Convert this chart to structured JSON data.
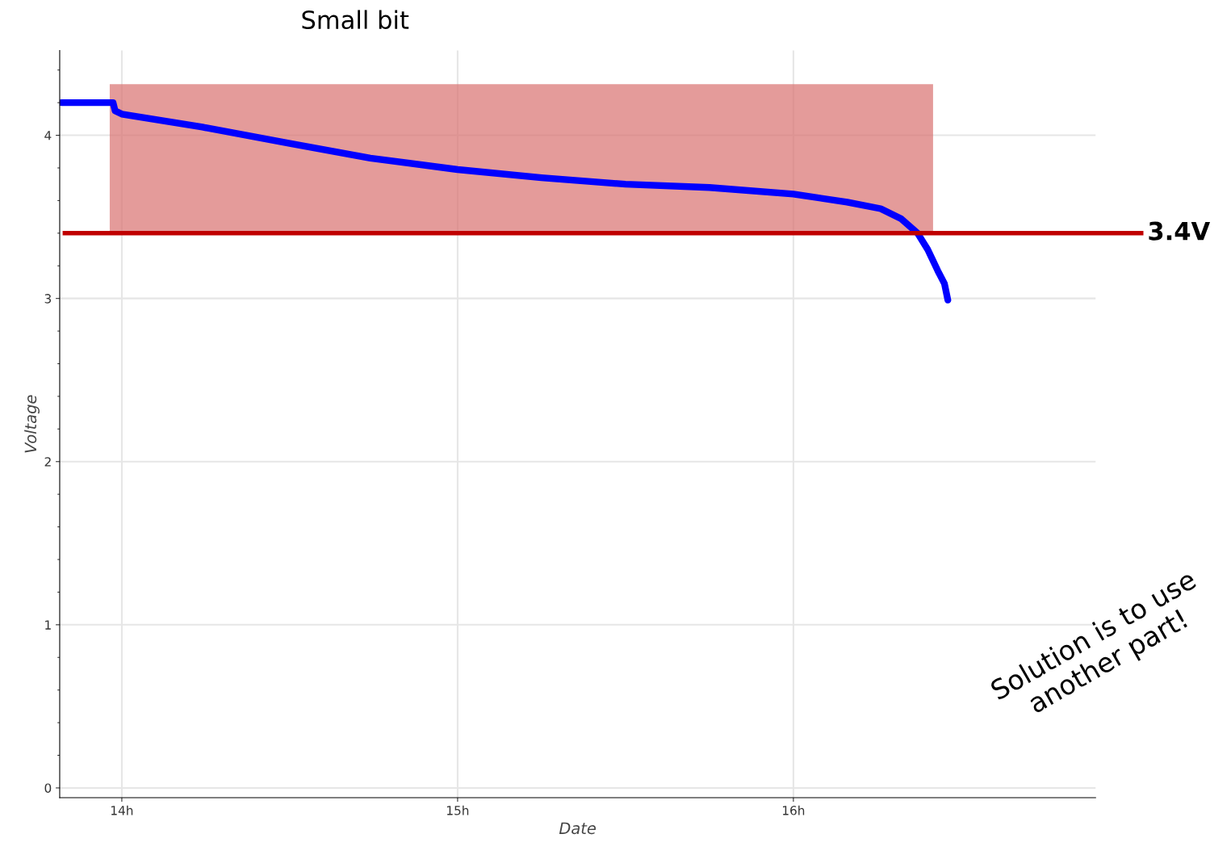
{
  "chart_data": {
    "type": "line",
    "title": "Small bit",
    "xlabel": "Date",
    "ylabel": "Voltage",
    "series": [
      {
        "color": "#0000ff",
        "x": [
          13.82,
          13.974,
          13.98,
          14.0,
          14.24,
          14.5,
          14.74,
          15.0,
          15.25,
          15.5,
          15.75,
          16.0,
          16.16,
          16.26,
          16.32,
          16.37,
          16.4,
          16.43,
          16.45,
          16.46
        ],
        "values": [
          4.2,
          4.2,
          4.15,
          4.13,
          4.05,
          3.95,
          3.86,
          3.79,
          3.74,
          3.7,
          3.68,
          3.64,
          3.59,
          3.55,
          3.49,
          3.4,
          3.3,
          3.17,
          3.09,
          2.99
        ]
      }
    ],
    "xlim": [
      13.815,
      16.9
    ],
    "ylim": [
      -0.06,
      4.52
    ],
    "xticks": [
      {
        "value": 14,
        "label": "14h"
      },
      {
        "value": 15,
        "label": "15h"
      },
      {
        "value": 16,
        "label": "16h"
      }
    ],
    "yticks": [
      0,
      1,
      2,
      3,
      4
    ],
    "grid": true,
    "marker": "none",
    "line_style": "solid",
    "ref_lines": [
      {
        "axis": "y",
        "value": 3.4,
        "label": "3.4V",
        "color": "#c00000"
      }
    ],
    "bands": [
      {
        "axis": "x",
        "from": 13.964,
        "to": 16.416,
        "color": "#d9706f"
      }
    ],
    "annotations": [
      "Solution is to use\nanother part!"
    ]
  }
}
